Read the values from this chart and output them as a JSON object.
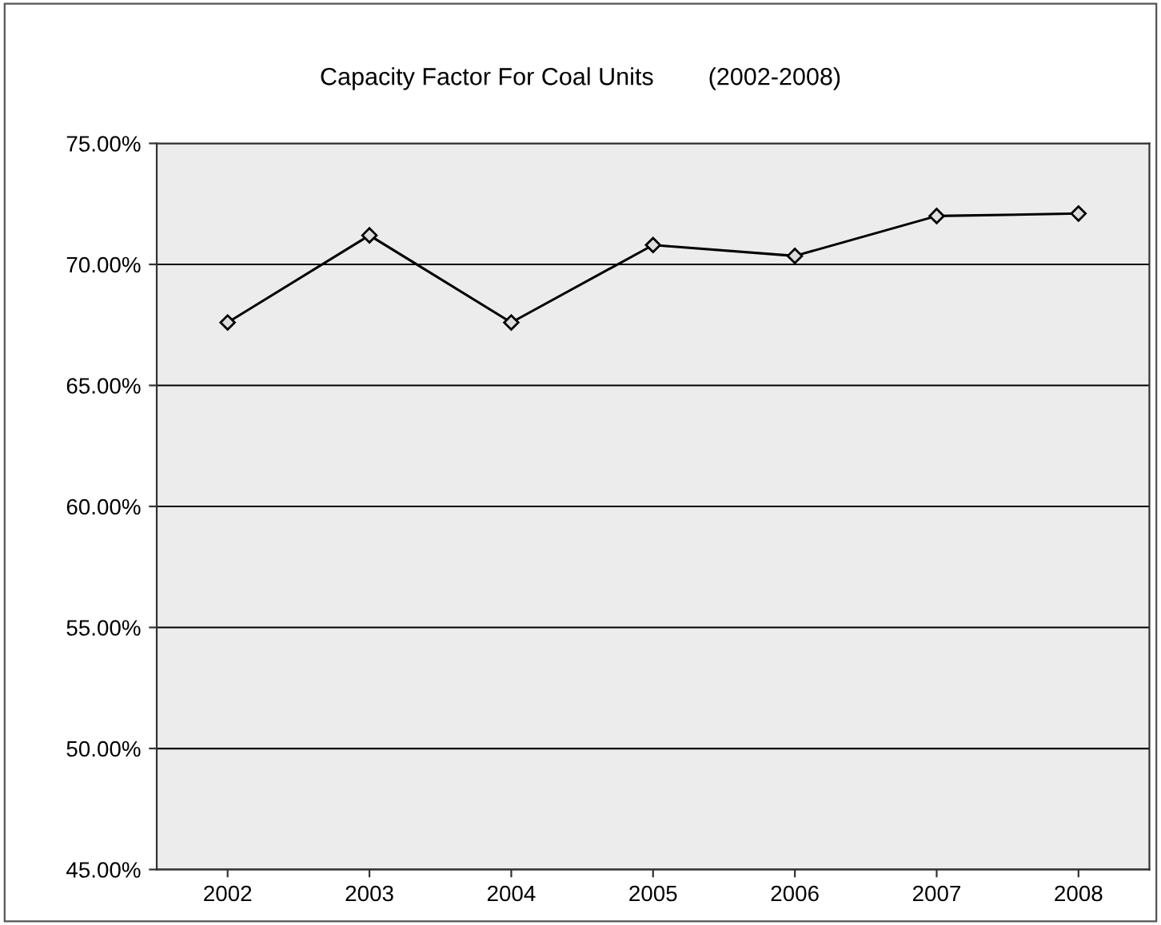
{
  "chart_data": {
    "type": "line",
    "title": "Capacity Factor For Coal Units        (2002-2008)",
    "categories": [
      "2002",
      "2003",
      "2004",
      "2005",
      "2006",
      "2007",
      "2008"
    ],
    "series": [
      {
        "color": "#000000",
        "values": [
          67.6,
          71.2,
          67.6,
          70.8,
          70.35,
          72.0,
          72.1
        ]
      }
    ],
    "ylim": [
      45,
      75
    ],
    "yticks": [
      {
        "value": 45,
        "label": "45.00%"
      },
      {
        "value": 50,
        "label": "50.00%"
      },
      {
        "value": 55,
        "label": "55.00%"
      },
      {
        "value": 60,
        "label": "60.00%"
      },
      {
        "value": 65,
        "label": "65.00%"
      },
      {
        "value": 70,
        "label": "70.00%"
      },
      {
        "value": 75,
        "label": "75.00%"
      }
    ],
    "grid": "y",
    "marker": "diamond",
    "line_style": "solid"
  }
}
